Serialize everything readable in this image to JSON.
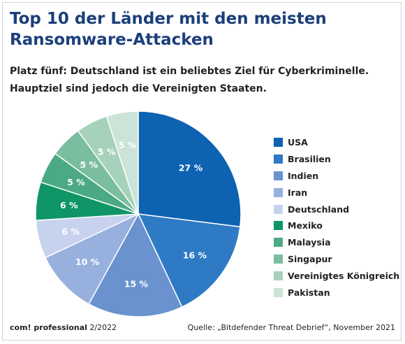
{
  "header": {
    "title": "Top 10 der Länder mit den meisten Ransomware-Attacken",
    "subtitle": "Platz fünf: Deutschland ist ein beliebtes Ziel für Cyberkriminelle. Hauptziel sind jedoch die Vereinigten Staaten."
  },
  "chart_data": {
    "type": "pie",
    "title": "Top 10 der Länder mit den meisten Ransomware-Attacken",
    "subtitle": "Platz fünf: Deutschland ist ein beliebtes Ziel für Cyberkriminelle. Hauptziel sind jedoch die Vereinigten Staaten.",
    "unit": "%",
    "legend_position": "right",
    "categories": [
      "USA",
      "Brasilien",
      "Indien",
      "Iran",
      "Deutschland",
      "Mexiko",
      "Malaysia",
      "Singapur",
      "Vereinigtes Königreich",
      "Pakistan"
    ],
    "values": [
      27,
      16,
      15,
      10,
      6,
      6,
      5,
      5,
      5,
      5
    ],
    "labels": [
      "27 %",
      "16 %",
      "15 %",
      "10 %",
      "6 %",
      "6 %",
      "5 %",
      "5 %",
      "5 %",
      "5 %"
    ],
    "colors": [
      "#0e62b2",
      "#2e7ac4",
      "#6a92cf",
      "#98b0de",
      "#c7d3ee",
      "#0f9566",
      "#4baa83",
      "#7bbd9f",
      "#a6d2bc",
      "#cbe4d7"
    ],
    "label_colors": [
      "#ffffff",
      "#ffffff",
      "#ffffff",
      "#ffffff",
      "#ffffff",
      "#ffffff",
      "#ffffff",
      "#ffffff",
      "#ffffff",
      "#ffffff"
    ]
  },
  "footer": {
    "brand": "com! professional",
    "issue": "2/2022",
    "source": "Quelle: „Bitdefender Threat Debrief“, November 2021"
  }
}
